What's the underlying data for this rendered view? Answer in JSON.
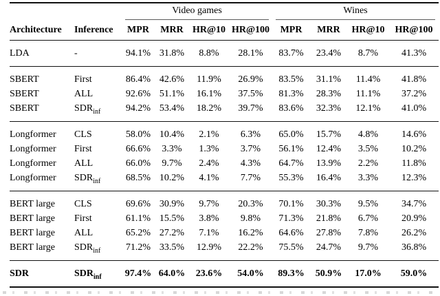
{
  "table": {
    "group_headers": [
      {
        "label": "Video games",
        "span": 4
      },
      {
        "label": "Wines",
        "span": 4
      }
    ],
    "columns": {
      "architecture": "Architecture",
      "inference": "Inference",
      "vg_mpr": "MPR",
      "vg_mrr": "MRR",
      "vg_hr10": "HR@10",
      "vg_hr100": "HR@100",
      "w_mpr": "MPR",
      "w_mrr": "MRR",
      "w_hr10": "HR@10",
      "w_hr100": "HR@100"
    },
    "groups": [
      {
        "rows": [
          {
            "architecture": "LDA",
            "inference": "-",
            "values": [
              "94.1%",
              "31.8%",
              "8.8%",
              "28.1%",
              "83.7%",
              "23.4%",
              "8.7%",
              "41.3%"
            ]
          }
        ]
      },
      {
        "rows": [
          {
            "architecture": "SBERT",
            "inference": "First",
            "values": [
              "86.4%",
              "42.6%",
              "11.9%",
              "26.9%",
              "83.5%",
              "31.1%",
              "11.4%",
              "41.8%"
            ]
          },
          {
            "architecture": "SBERT",
            "inference": "ALL",
            "values": [
              "92.6%",
              "51.1%",
              "16.1%",
              "37.5%",
              "81.3%",
              "28.3%",
              "11.1%",
              "37.2%"
            ]
          },
          {
            "architecture": "SBERT",
            "inference": "SDR",
            "inference_sub": "inf",
            "values": [
              "94.2%",
              "53.4%",
              "18.2%",
              "39.7%",
              "83.6%",
              "32.3%",
              "12.1%",
              "41.0%"
            ]
          }
        ]
      },
      {
        "rows": [
          {
            "architecture": "Longformer",
            "inference": "CLS",
            "values": [
              "58.0%",
              "10.4%",
              "2.1%",
              "6.3%",
              "65.0%",
              "15.7%",
              "4.8%",
              "14.6%"
            ]
          },
          {
            "architecture": "Longformer",
            "inference": "First",
            "values": [
              "66.6%",
              "3.3%",
              "1.3%",
              "3.7%",
              "56.1%",
              "12.4%",
              "3.5%",
              "10.2%"
            ]
          },
          {
            "architecture": "Longformer",
            "inference": "ALL",
            "values": [
              "66.0%",
              "9.7%",
              "2.4%",
              "4.3%",
              "64.7%",
              "13.9%",
              "2.2%",
              "11.8%"
            ]
          },
          {
            "architecture": "Longformer",
            "inference": "SDR",
            "inference_sub": "inf",
            "values": [
              "68.5%",
              "10.2%",
              "4.1%",
              "7.7%",
              "55.3%",
              "16.4%",
              "3.3%",
              "12.3%"
            ]
          }
        ]
      },
      {
        "rows": [
          {
            "architecture": "BERT large",
            "inference": "CLS",
            "values": [
              "69.6%",
              "30.9%",
              "9.7%",
              "20.3%",
              "70.1%",
              "30.3%",
              "9.5%",
              "34.7%"
            ]
          },
          {
            "architecture": "BERT large",
            "inference": "First",
            "values": [
              "61.1%",
              "15.5%",
              "3.8%",
              "9.8%",
              "71.3%",
              "21.8%",
              "6.7%",
              "20.9%"
            ]
          },
          {
            "architecture": "BERT large",
            "inference": "ALL",
            "values": [
              "65.2%",
              "27.2%",
              "7.1%",
              "16.2%",
              "64.6%",
              "27.8%",
              "7.8%",
              "26.2%"
            ]
          },
          {
            "architecture": "BERT large",
            "inference": "SDR",
            "inference_sub": "inf",
            "values": [
              "71.2%",
              "33.5%",
              "12.9%",
              "22.2%",
              "75.5%",
              "24.7%",
              "9.7%",
              "36.8%"
            ]
          }
        ]
      },
      {
        "rows": [
          {
            "architecture": "SDR",
            "inference": "SDR",
            "inference_sub": "inf",
            "bold": true,
            "values": [
              "97.4%",
              "64.0%",
              "23.6%",
              "54.0%",
              "89.3%",
              "50.9%",
              "17.0%",
              "59.0%"
            ]
          }
        ]
      }
    ]
  }
}
